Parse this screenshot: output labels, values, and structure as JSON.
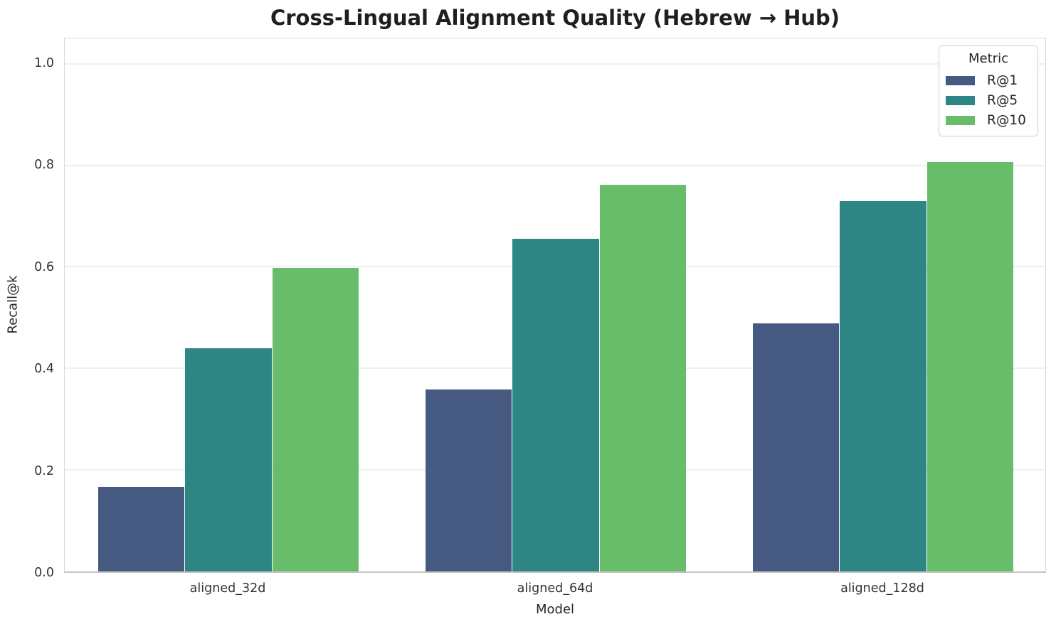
{
  "title": "Cross-Lingual Alignment Quality (Hebrew → Hub)",
  "colors": {
    "background": "#ffffff",
    "grid": "#efefef",
    "spine": "#d9d9d9",
    "bottom_axis": "#c6c6c6",
    "title_text": "#1f1f1f",
    "tick_text": "#333333"
  },
  "chart_data": {
    "type": "bar",
    "title": "Cross-Lingual Alignment Quality (Hebrew → Hub)",
    "xlabel": "Model",
    "ylabel": "Recall@k",
    "categories": [
      "aligned_32d",
      "aligned_64d",
      "aligned_128d"
    ],
    "series": [
      {
        "name": "R@1",
        "color": "#465a81",
        "values": [
          0.167,
          0.359,
          0.488
        ]
      },
      {
        "name": "R@5",
        "color": "#2d8684",
        "values": [
          0.44,
          0.655,
          0.73
        ]
      },
      {
        "name": "R@10",
        "color": "#68bd6b",
        "values": [
          0.598,
          0.761,
          0.807
        ]
      }
    ],
    "yticks": [
      0.0,
      0.2,
      0.4,
      0.6,
      0.8,
      1.0
    ],
    "ytick_labels": [
      "0.0",
      "0.2",
      "0.4",
      "0.6",
      "0.8",
      "1.0"
    ],
    "ylim": [
      0,
      1.05
    ],
    "grid": true,
    "bar_group_width_fraction": 0.8,
    "legend": {
      "title": "Metric",
      "position": "upper right"
    }
  }
}
